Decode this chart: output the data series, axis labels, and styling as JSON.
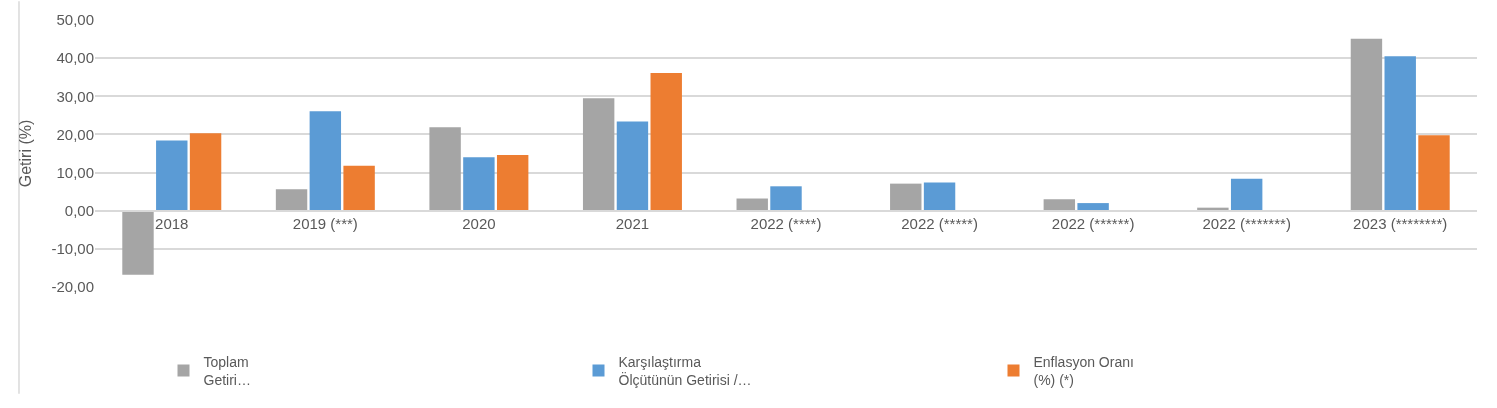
{
  "chart_data": {
    "type": "bar",
    "ylabel": "Getiri (%)",
    "categories": [
      "2018",
      "2019 (***)",
      "2020",
      "2021",
      "2022 (****)",
      "2022 (*****)",
      "2022 (******)",
      "2022 (*******)",
      "2023 (********)"
    ],
    "series": [
      {
        "name": "Toplam\nGetiri…",
        "color": "#a5a5a5",
        "values": [
          -16.8,
          5.6,
          21.9,
          29.5,
          3.2,
          7.1,
          3.0,
          0.8,
          45.1
        ]
      },
      {
        "name": "Karşılaştırma\nÖlçütünün Getirisi /…",
        "color": "#5b9bd5",
        "values": [
          18.4,
          26.1,
          14.0,
          23.4,
          6.4,
          7.4,
          2.0,
          8.4,
          40.5
        ]
      },
      {
        "name": "Enflasyon Oranı\n(%) (*)",
        "color": "#ed7d31",
        "values": [
          20.3,
          11.8,
          14.6,
          36.1,
          null,
          null,
          null,
          null,
          19.8
        ]
      }
    ],
    "ylim": [
      -20,
      50
    ],
    "yticks": [
      {
        "value": -20,
        "label": "-20,00"
      },
      {
        "value": -10,
        "label": "-10,00"
      },
      {
        "value": 0,
        "label": "0,00"
      },
      {
        "value": 10,
        "label": "10,00"
      },
      {
        "value": 20,
        "label": "20,00"
      },
      {
        "value": 30,
        "label": "30,00"
      },
      {
        "value": 40,
        "label": "40,00"
      },
      {
        "value": 50,
        "label": "50,00"
      }
    ],
    "grid": "y",
    "legend": "bottom"
  }
}
